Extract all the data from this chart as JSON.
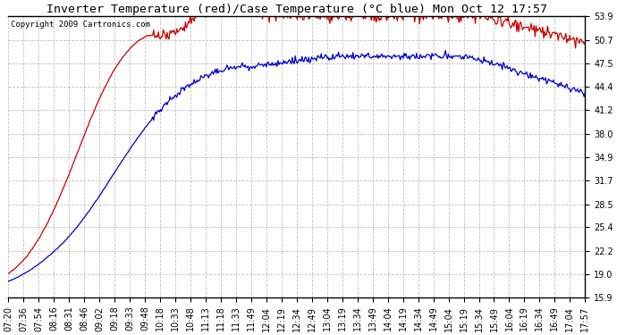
{
  "title": "Inverter Temperature (red)/Case Temperature (°C blue) Mon Oct 12 17:57",
  "copyright": "Copyright 2009 Cartronics.com",
  "yticks": [
    15.9,
    19.0,
    22.2,
    25.4,
    28.5,
    31.7,
    34.9,
    38.0,
    41.2,
    44.4,
    47.5,
    50.7,
    53.9
  ],
  "ylim": [
    15.9,
    53.9
  ],
  "xtick_labels": [
    "07:20",
    "07:36",
    "07:54",
    "08:16",
    "08:31",
    "08:46",
    "09:02",
    "09:18",
    "09:33",
    "09:48",
    "10:18",
    "10:33",
    "10:48",
    "11:13",
    "11:18",
    "11:33",
    "11:49",
    "12:04",
    "12:19",
    "12:34",
    "12:49",
    "13:04",
    "13:19",
    "13:34",
    "13:49",
    "14:04",
    "14:19",
    "14:34",
    "14:49",
    "15:04",
    "15:19",
    "15:34",
    "15:49",
    "16:04",
    "16:19",
    "16:34",
    "16:49",
    "17:04",
    "17:57"
  ],
  "background_color": "#ffffff",
  "plot_bg_color": "#ffffff",
  "grid_color": "#c0c0c0",
  "red_color": "#cc0000",
  "blue_color": "#0000cc",
  "title_fontsize": 9.5,
  "tick_fontsize": 7,
  "copyright_fontsize": 6.5
}
